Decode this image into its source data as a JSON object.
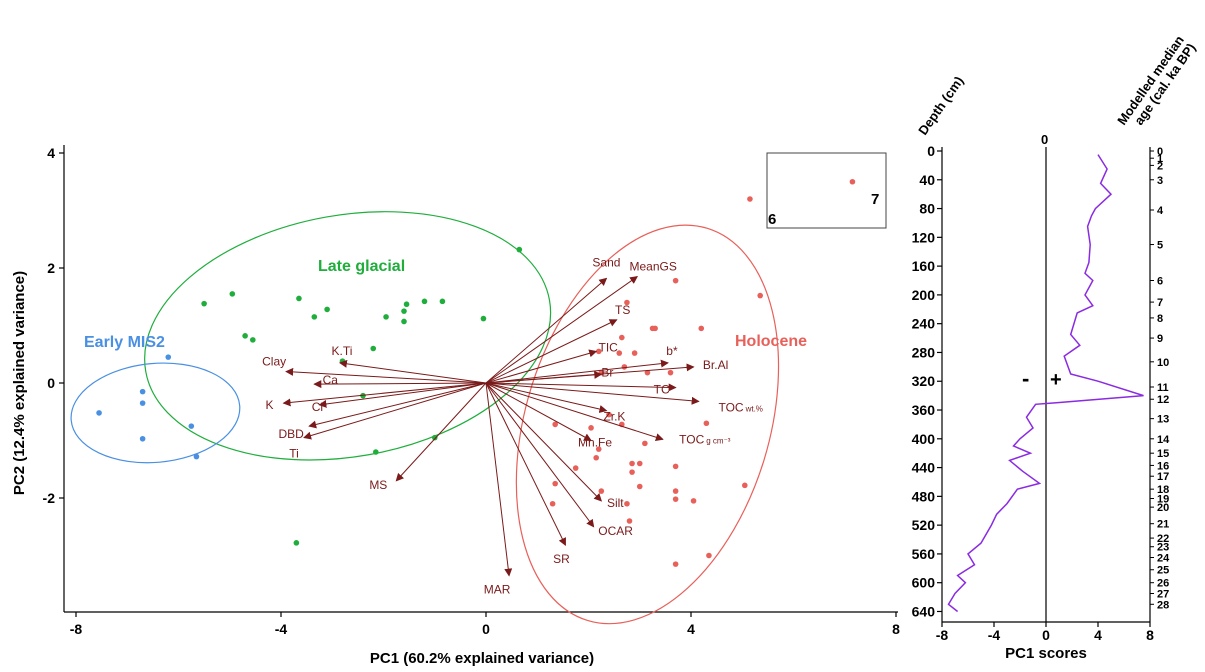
{
  "chart_data": [
    {
      "type": "scatter",
      "subtype": "pca-biplot",
      "xlabel": "PC1 (60.2% explained variance)",
      "ylabel": "PC2 (12.4% explained variance)",
      "xlim": [
        -8.3,
        8.3
      ],
      "ylim": [
        -3.9,
        4.15
      ],
      "x_ticks": [
        -8,
        -4,
        0,
        4,
        8
      ],
      "y_ticks": [
        -2,
        0,
        2,
        4
      ],
      "x_tick_labels": [
        "-8",
        "-4",
        "0",
        "4",
        "8"
      ],
      "y_tick_labels": [
        "-2",
        "0",
        "2",
        "4"
      ],
      "colors": {
        "holocene": "#e8605a",
        "lateglacial": "#1fae3c",
        "mis2": "#4a90e2",
        "arrow": "#7a1a1a"
      },
      "groups": [
        {
          "label": "Late glacial",
          "color": "#1fae3c",
          "ellipse": {
            "cx": -2.7,
            "cy": 0.82,
            "rx": 4.0,
            "ry": 2.1,
            "angle": 10
          },
          "points": [
            [
              -5.5,
              1.38
            ],
            [
              -4.95,
              1.55
            ],
            [
              -4.7,
              0.82
            ],
            [
              -4.55,
              0.75
            ],
            [
              -3.65,
              1.47
            ],
            [
              -3.35,
              1.15
            ],
            [
              -3.1,
              1.28
            ],
            [
              -2.4,
              -0.22
            ],
            [
              -2.2,
              0.6
            ],
            [
              -1.95,
              1.15
            ],
            [
              -1.6,
              1.07
            ],
            [
              -1.6,
              1.25
            ],
            [
              -1.55,
              1.37
            ],
            [
              -1.2,
              1.42
            ],
            [
              -0.85,
              1.42
            ],
            [
              -0.05,
              1.12
            ],
            [
              0.65,
              2.32
            ],
            [
              -2.15,
              -1.2
            ],
            [
              -1.0,
              -0.95
            ],
            [
              -3.7,
              -2.78
            ],
            [
              -2.8,
              0.38
            ]
          ]
        },
        {
          "label": "Early MIS2",
          "color": "#4a90e2",
          "ellipse": {
            "cx": -6.45,
            "cy": -0.52,
            "rx": 1.65,
            "ry": 0.86,
            "angle": 5
          },
          "points": [
            [
              -7.55,
              -0.52
            ],
            [
              -6.2,
              0.45
            ],
            [
              -6.7,
              -0.15
            ],
            [
              -6.7,
              -0.35
            ],
            [
              -6.7,
              -0.97
            ],
            [
              -5.75,
              -0.75
            ],
            [
              -5.65,
              -1.28
            ]
          ]
        },
        {
          "label": "Holocene",
          "color": "#e8605a",
          "ellipse": {
            "cx": 3.15,
            "cy": -0.72,
            "rx": 4.0,
            "ry": 2.12,
            "angle": 73
          },
          "points": [
            [
              5.15,
              3.2
            ],
            [
              5.35,
              1.52
            ],
            [
              3.7,
              1.78
            ],
            [
              2.75,
              1.4
            ],
            [
              3.3,
              0.95
            ],
            [
              4.2,
              0.95
            ],
            [
              3.25,
              0.95
            ],
            [
              2.65,
              0.79
            ],
            [
              2.6,
              0.52
            ],
            [
              2.2,
              0.55
            ],
            [
              2.9,
              0.52
            ],
            [
              2.7,
              0.28
            ],
            [
              2.25,
              0.18
            ],
            [
              3.15,
              0.18
            ],
            [
              3.6,
              0.18
            ],
            [
              2.4,
              -0.55
            ],
            [
              2.65,
              -0.72
            ],
            [
              4.3,
              -0.7
            ],
            [
              1.35,
              -0.72
            ],
            [
              2.05,
              -0.78
            ],
            [
              2.2,
              -1.15
            ],
            [
              2.15,
              -1.3
            ],
            [
              3.1,
              -1.05
            ],
            [
              2.85,
              -1.4
            ],
            [
              3.0,
              -1.8
            ],
            [
              3.0,
              -1.4
            ],
            [
              1.75,
              -1.48
            ],
            [
              2.85,
              -1.55
            ],
            [
              1.35,
              -1.75
            ],
            [
              2.25,
              -1.88
            ],
            [
              2.75,
              -2.1
            ],
            [
              3.7,
              -1.45
            ],
            [
              3.7,
              -1.88
            ],
            [
              3.7,
              -2.02
            ],
            [
              4.05,
              -2.05
            ],
            [
              5.05,
              -1.78
            ],
            [
              1.3,
              -2.1
            ],
            [
              2.8,
              -2.4
            ],
            [
              4.35,
              -3.0
            ],
            [
              3.7,
              -3.15
            ]
          ]
        }
      ],
      "loadings": [
        {
          "label": "Sand",
          "x": 2.35,
          "y": 1.82
        },
        {
          "label": "MeanGS",
          "x": 2.95,
          "y": 1.85
        },
        {
          "label": "TS",
          "x": 2.55,
          "y": 1.1
        },
        {
          "label": "TIC",
          "x": 2.15,
          "y": 0.55
        },
        {
          "label": "b*",
          "x": 3.55,
          "y": 0.35
        },
        {
          "label": "Br.Al",
          "x": 4.05,
          "y": 0.28
        },
        {
          "label": "Br",
          "x": 2.25,
          "y": 0.15
        },
        {
          "label": "TC",
          "x": 3.7,
          "y": -0.08
        },
        {
          "label": "Zr.K",
          "x": 2.35,
          "y": -0.48
        },
        {
          "label": "TOC",
          "unit": "wt.%",
          "x": 4.15,
          "y": -0.32
        },
        {
          "label": "TOC",
          "unit": "g cm⁻³",
          "x": 3.45,
          "y": -0.98
        },
        {
          "label": "Mn.Fe",
          "x": 2.05,
          "y": -1.0
        },
        {
          "label": "Silt",
          "x": 2.25,
          "y": -2.05
        },
        {
          "label": "OCAR",
          "x": 2.1,
          "y": -2.5
        },
        {
          "label": "SR",
          "x": 1.55,
          "y": -2.82
        },
        {
          "label": "MAR",
          "x": 0.45,
          "y": -3.35
        },
        {
          "label": "MS",
          "x": -1.75,
          "y": -1.7
        },
        {
          "label": "Ti",
          "x": -3.55,
          "y": -0.95
        },
        {
          "label": "DBD",
          "x": -3.45,
          "y": -0.75
        },
        {
          "label": "K",
          "x": -3.95,
          "y": -0.35
        },
        {
          "label": "Cl",
          "x": -3.25,
          "y": -0.38
        },
        {
          "label": "Ca",
          "x": -3.35,
          "y": -0.02
        },
        {
          "label": "Clay",
          "x": -3.9,
          "y": 0.2
        },
        {
          "label": "K.Ti",
          "x": -2.85,
          "y": 0.35
        }
      ],
      "inset": {
        "labels": [
          "6",
          "7"
        ],
        "points": [
          [
            7.15,
            3.5
          ]
        ]
      }
    },
    {
      "type": "line",
      "xlabel": "PC1 scores",
      "ylabel": "Depth (cm)",
      "secondary_ylabel": "Modelled median age (cal. ka BP)",
      "xlim": [
        -8,
        8
      ],
      "ylim": [
        0,
        650
      ],
      "x_ticks": [
        -8,
        -4,
        0,
        4,
        8
      ],
      "x_tick_labels": [
        "-8",
        "-4",
        "0",
        "4",
        "8"
      ],
      "y_ticks": [
        0,
        40,
        80,
        120,
        160,
        200,
        240,
        280,
        320,
        360,
        400,
        440,
        480,
        520,
        560,
        600,
        640
      ],
      "age_ticks": [
        {
          "age": "0",
          "depth": 0
        },
        {
          "age": "1",
          "depth": 10
        },
        {
          "age": "2",
          "depth": 20
        },
        {
          "age": "3",
          "depth": 40
        },
        {
          "age": "4",
          "depth": 82
        },
        {
          "age": "5",
          "depth": 130
        },
        {
          "age": "6",
          "depth": 180
        },
        {
          "age": "7",
          "depth": 210
        },
        {
          "age": "8",
          "depth": 232
        },
        {
          "age": "9",
          "depth": 260
        },
        {
          "age": "10",
          "depth": 293
        },
        {
          "age": "11",
          "depth": 328
        },
        {
          "age": "12",
          "depth": 345
        },
        {
          "age": "13",
          "depth": 372
        },
        {
          "age": "14",
          "depth": 400
        },
        {
          "age": "15",
          "depth": 420
        },
        {
          "age": "16",
          "depth": 437
        },
        {
          "age": "17",
          "depth": 452
        },
        {
          "age": "18",
          "depth": 470
        },
        {
          "age": "19",
          "depth": 483
        },
        {
          "age": "20",
          "depth": 495
        },
        {
          "age": "21",
          "depth": 518
        },
        {
          "age": "22",
          "depth": 538
        },
        {
          "age": "23",
          "depth": 550
        },
        {
          "age": "24",
          "depth": 565
        },
        {
          "age": "25",
          "depth": 582
        },
        {
          "age": "26",
          "depth": 600
        },
        {
          "age": "27",
          "depth": 615
        },
        {
          "age": "28",
          "depth": 630
        }
      ],
      "zero_label": "0",
      "sign_labels": [
        "-",
        "+"
      ],
      "series": [
        {
          "color": "#8a2be2",
          "points": [
            [
              4.0,
              5
            ],
            [
              4.7,
              25
            ],
            [
              4.2,
              45
            ],
            [
              5.0,
              60
            ],
            [
              3.8,
              80
            ],
            [
              3.5,
              90
            ],
            [
              3.2,
              105
            ],
            [
              3.4,
              130
            ],
            [
              3.3,
              155
            ],
            [
              3.0,
              170
            ],
            [
              3.6,
              180
            ],
            [
              3.0,
              200
            ],
            [
              3.6,
              215
            ],
            [
              2.4,
              225
            ],
            [
              1.9,
              255
            ],
            [
              2.6,
              270
            ],
            [
              1.4,
              285
            ],
            [
              1.9,
              310
            ],
            [
              4.0,
              320
            ],
            [
              7.5,
              340
            ],
            [
              0.8,
              350
            ],
            [
              -0.8,
              352
            ],
            [
              -1.5,
              370
            ],
            [
              -1.0,
              385
            ],
            [
              -2.0,
              400
            ],
            [
              -2.5,
              410
            ],
            [
              -1.2,
              420
            ],
            [
              -2.8,
              430
            ],
            [
              -1.8,
              445
            ],
            [
              -0.5,
              462
            ],
            [
              -2.2,
              470
            ],
            [
              -3.0,
              490
            ],
            [
              -3.8,
              505
            ],
            [
              -4.2,
              520
            ],
            [
              -5.0,
              545
            ],
            [
              -6.0,
              560
            ],
            [
              -5.5,
              575
            ],
            [
              -6.8,
              590
            ],
            [
              -6.2,
              600
            ],
            [
              -7.0,
              615
            ],
            [
              -7.5,
              630
            ],
            [
              -6.8,
              640
            ]
          ]
        }
      ]
    }
  ],
  "labels": {
    "ylabel_main": "PC2 (12.4% explained variance)",
    "xlabel_main": "PC1 (60.2% explained variance)",
    "xlabel_side": "PC1 scores",
    "depth_title": "Depth (cm)",
    "age_title_line1": "Modelled median",
    "age_title_line2": "age (cal. ka BP)"
  }
}
